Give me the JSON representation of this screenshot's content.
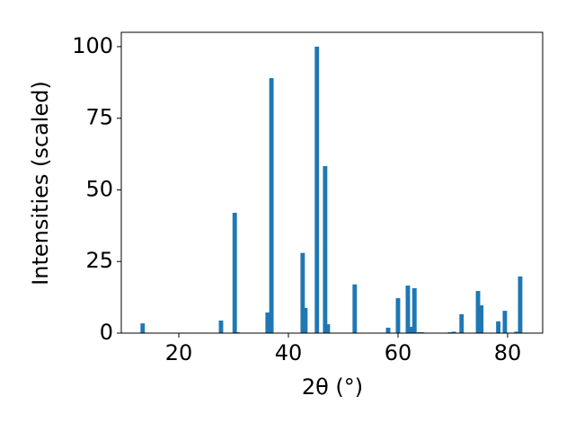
{
  "chart_data": {
    "type": "bar",
    "xlabel": "2θ (°)",
    "ylabel": "Intensities (scaled)",
    "x": [
      13.4,
      27.7,
      30.2,
      30.7,
      36.2,
      36.9,
      42.6,
      43.1,
      45.2,
      46.7,
      47.2,
      52.1,
      58.2,
      60.0,
      61.8,
      62.3,
      63.0,
      63.8,
      64.4,
      69.5,
      70.2,
      71.6,
      74.6,
      75.2,
      78.3,
      79.5,
      81.6,
      82.3
    ],
    "values": [
      3.4,
      4.4,
      42,
      0.3,
      7.2,
      89,
      28,
      8.8,
      100,
      58.3,
      3.1,
      17,
      1.9,
      12.2,
      16.6,
      2.2,
      15.7,
      0.3,
      0.3,
      0.3,
      0.5,
      6.6,
      14.7,
      9.7,
      4.1,
      7.8,
      0.5,
      19.8
    ],
    "color": "#1f77b4",
    "xlim": [
      9.5,
      86.4
    ],
    "xticks": [
      20,
      40,
      60,
      80
    ],
    "ylim": [
      0,
      105
    ],
    "yticks": [
      0,
      25,
      50,
      75,
      100
    ]
  }
}
